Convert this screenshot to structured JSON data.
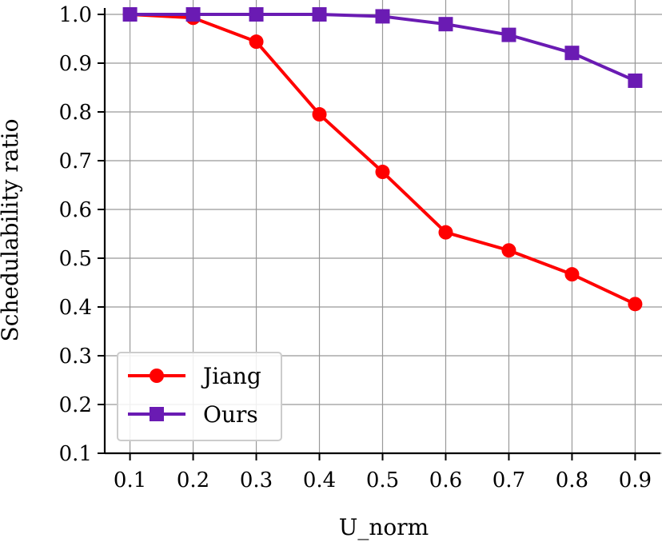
{
  "chart_data": {
    "type": "line",
    "title": "",
    "xlabel": "U_norm",
    "ylabel": "Schedulability ratio",
    "x": [
      0.1,
      0.2,
      0.3,
      0.4,
      0.5,
      0.6,
      0.7,
      0.8,
      0.9
    ],
    "x_tick_labels": [
      "0.1",
      "0.2",
      "0.3",
      "0.4",
      "0.5",
      "0.6",
      "0.7",
      "0.8",
      "0.9"
    ],
    "y_tick_values": [
      0.1,
      0.2,
      0.3,
      0.4,
      0.5,
      0.6,
      0.7,
      0.8,
      0.9,
      1.0
    ],
    "y_tick_labels": [
      "0.1",
      "0.2",
      "0.3",
      "0.4",
      "0.5",
      "0.6",
      "0.7",
      "0.8",
      "0.9",
      "1.0"
    ],
    "xlim": [
      0.06,
      0.94
    ],
    "ylim": [
      0.1,
      1.0
    ],
    "grid": true,
    "legend_position": "lower-left",
    "series": [
      {
        "name": "Jiang",
        "color": "#ff0000",
        "marker": "circle",
        "values": [
          1.0,
          0.993,
          0.944,
          0.795,
          0.677,
          0.553,
          0.516,
          0.467,
          0.406
        ]
      },
      {
        "name": "Ours",
        "color": "#6a1bb3",
        "marker": "square",
        "values": [
          1.0,
          1.0,
          1.0,
          1.0,
          0.996,
          0.98,
          0.958,
          0.921,
          0.864
        ]
      }
    ]
  }
}
